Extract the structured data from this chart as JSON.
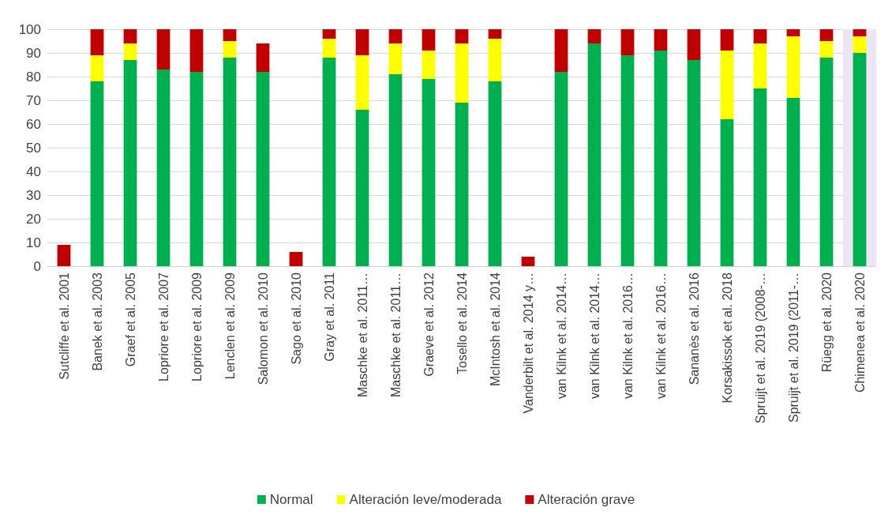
{
  "chart_data": {
    "type": "bar",
    "stacked": true,
    "categories": [
      "Sutcliffe et al. 2001",
      "Banek et al. 2003",
      "Graef et al. 2005",
      "Lopriore et al. 2007",
      "Lopriore et al. 2009",
      "Lenclen et al. 2009",
      "Salomon et al. 2010",
      "Sago et al. 2010",
      "Gray et al. 2011",
      "Maschke et al. 2011…",
      "Maschke et al. 2011…",
      "Graeve et al. 2012",
      "Tosello et al. 2014",
      "McIntosh et al. 2014",
      "Vanderbilt et al. 2014 y…",
      "van Kilnk et al. 2014…",
      "van Kilnk et al. 2014…",
      "van Kilnk et al. 2016…",
      "van Kilnk et al. 2016…",
      "Sananès et al. 2016",
      "Korsakissok et al. 2018",
      "Spruijt et al. 2019 (2008-…",
      "Spruijt et al. 2019 (2011-…",
      "Rüegg et al. 2020",
      "Chimenea et al. 2020"
    ],
    "series": [
      {
        "name": "Normal",
        "color": "#00b050",
        "values": [
          0,
          78,
          87,
          83,
          82,
          88,
          82,
          0,
          88,
          66,
          81,
          79,
          69,
          78,
          0,
          82,
          94,
          89,
          91,
          87,
          62,
          75,
          71,
          88,
          90
        ]
      },
      {
        "name": "Alteración leve/moderada",
        "color": "#ffff00",
        "values": [
          0,
          11,
          7,
          0,
          0,
          7,
          0,
          0,
          8,
          23,
          13,
          12,
          25,
          18,
          0,
          0,
          0,
          0,
          0,
          0,
          29,
          19,
          26,
          7,
          7
        ]
      },
      {
        "name": "Alteración grave",
        "color": "#c00000",
        "values": [
          9,
          11,
          6,
          17,
          18,
          5,
          12,
          6,
          4,
          11,
          6,
          9,
          6,
          4,
          4,
          18,
          6,
          11,
          9,
          13,
          9,
          6,
          3,
          5,
          3
        ]
      }
    ],
    "ylim": [
      0,
      100
    ],
    "yticks": [
      0,
      10,
      20,
      30,
      40,
      50,
      60,
      70,
      80,
      90,
      100
    ],
    "grid": "y",
    "legend": "bottom",
    "bands": [
      {
        "axis": "x",
        "from": "Chimenea et al. 2020",
        "to": "Chimenea et al. 2020",
        "color": "#ece6f4"
      }
    ]
  }
}
